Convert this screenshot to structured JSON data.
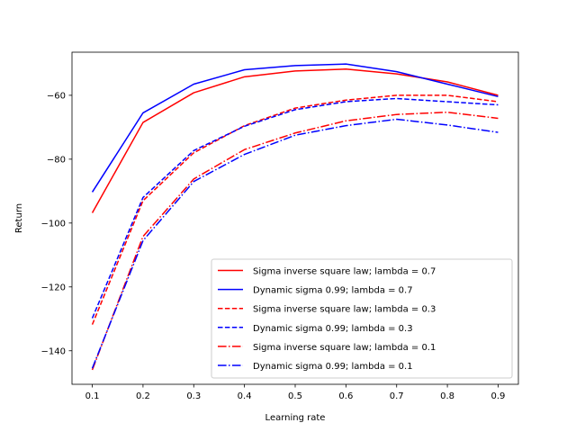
{
  "chart_data": {
    "type": "line",
    "title": "",
    "xlabel": "Learning rate",
    "ylabel": "Return",
    "x": [
      0.1,
      0.2,
      0.3,
      0.4,
      0.5,
      0.6,
      0.7,
      0.8,
      0.9
    ],
    "xlim": [
      0.06,
      0.94
    ],
    "ylim": [
      -150.5,
      -46.5
    ],
    "xticks": [
      "0.1",
      "0.2",
      "0.3",
      "0.4",
      "0.5",
      "0.6",
      "0.7",
      "0.8",
      "0.9"
    ],
    "yticks": [
      -140,
      -120,
      -100,
      -80,
      -60
    ],
    "ytick_labels": [
      "−140",
      "−120",
      "−100",
      "−80",
      "−60"
    ],
    "grid": false,
    "legend_position": "lower-right",
    "series": [
      {
        "name": "Sigma inverse square law; lambda = 0.7",
        "color": "#ff0000",
        "dash": "solid",
        "values": [
          -96.8,
          -68.5,
          -59.2,
          -54.2,
          -52.4,
          -51.8,
          -53.3,
          -55.8,
          -60.0
        ]
      },
      {
        "name": "Dynamic sigma 0.99; lambda = 0.7",
        "color": "#0000ff",
        "dash": "solid",
        "values": [
          -90.3,
          -65.5,
          -56.5,
          -52.0,
          -50.7,
          -50.2,
          -52.6,
          -56.5,
          -60.4
        ]
      },
      {
        "name": "Sigma inverse square law; lambda = 0.3",
        "color": "#ff0000",
        "dash": "dashed",
        "values": [
          -131.8,
          -93.0,
          -78.0,
          -69.5,
          -64.0,
          -61.5,
          -60.0,
          -60.0,
          -62.0
        ]
      },
      {
        "name": "Dynamic sigma 0.99; lambda = 0.3",
        "color": "#0000ff",
        "dash": "dashed",
        "values": [
          -129.8,
          -92.0,
          -77.3,
          -69.7,
          -64.5,
          -62.0,
          -61.0,
          -62.0,
          -63.0
        ]
      },
      {
        "name": "Sigma inverse square law; lambda = 0.1",
        "color": "#ff0000",
        "dash": "dashdot",
        "values": [
          -146.0,
          -104.2,
          -86.2,
          -77.0,
          -71.8,
          -68.0,
          -66.0,
          -65.3,
          -67.2
        ]
      },
      {
        "name": "Dynamic sigma 0.99; lambda = 0.1",
        "color": "#0000ff",
        "dash": "dashdot",
        "values": [
          -145.5,
          -105.5,
          -87.0,
          -78.5,
          -72.5,
          -69.5,
          -67.5,
          -69.3,
          -71.6
        ]
      }
    ]
  }
}
